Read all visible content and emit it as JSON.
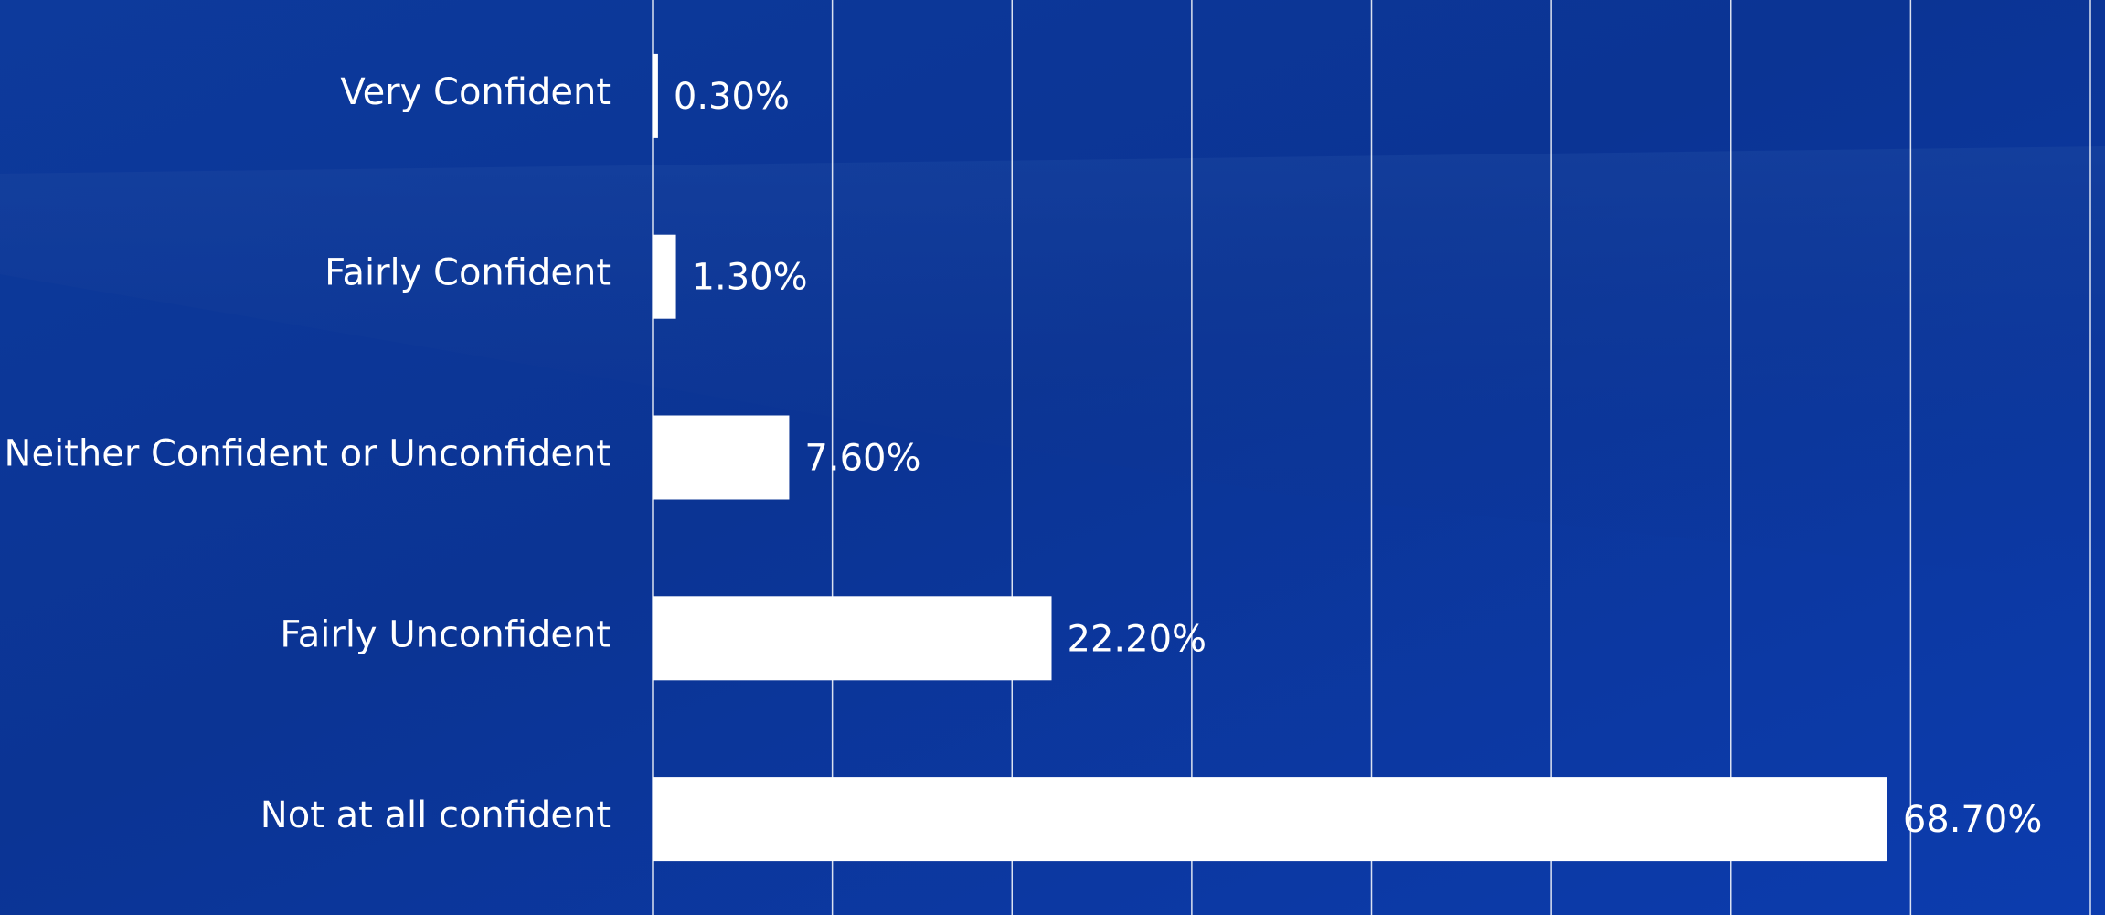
{
  "chart_data": {
    "type": "bar",
    "orientation": "horizontal",
    "categories": [
      "Very Confident",
      "Fairly Confident",
      "Neither Confident or Unconfident",
      "Fairly Unconfident",
      "Not at all confident"
    ],
    "values": [
      0.3,
      1.3,
      7.6,
      22.2,
      68.7
    ],
    "value_labels": [
      "0.30%",
      "1.30%",
      "7.60%",
      "22.20%",
      "68.70%"
    ],
    "color": "#ffffff",
    "xlim": [
      0,
      80
    ],
    "xticks": [
      0,
      10,
      20,
      30,
      40,
      50,
      60,
      70,
      80
    ],
    "grid": true
  }
}
